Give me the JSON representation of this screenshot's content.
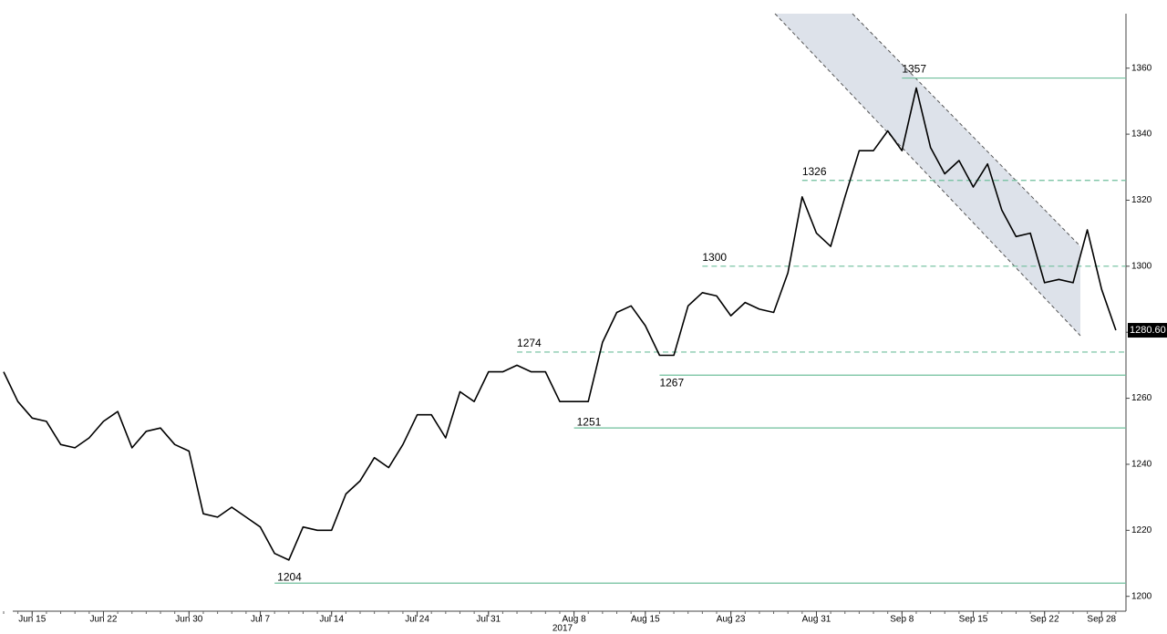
{
  "chart_data": {
    "type": "line",
    "x": [
      "2017-06-13",
      "2017-06-14",
      "2017-06-15",
      "2017-06-16",
      "2017-06-19",
      "2017-06-20",
      "2017-06-21",
      "2017-06-22",
      "2017-06-23",
      "2017-06-26",
      "2017-06-27",
      "2017-06-28",
      "2017-06-29",
      "2017-06-30",
      "2017-07-03",
      "2017-07-04",
      "2017-07-05",
      "2017-07-06",
      "2017-07-07",
      "2017-07-10",
      "2017-07-11",
      "2017-07-12",
      "2017-07-13",
      "2017-07-14",
      "2017-07-17",
      "2017-07-18",
      "2017-07-19",
      "2017-07-20",
      "2017-07-21",
      "2017-07-24",
      "2017-07-25",
      "2017-07-26",
      "2017-07-27",
      "2017-07-28",
      "2017-07-31",
      "2017-08-01",
      "2017-08-02",
      "2017-08-03",
      "2017-08-04",
      "2017-08-07",
      "2017-08-08",
      "2017-08-09",
      "2017-08-10",
      "2017-08-11",
      "2017-08-14",
      "2017-08-15",
      "2017-08-16",
      "2017-08-17",
      "2017-08-18",
      "2017-08-21",
      "2017-08-22",
      "2017-08-23",
      "2017-08-24",
      "2017-08-25",
      "2017-08-28",
      "2017-08-29",
      "2017-08-30",
      "2017-08-31",
      "2017-09-01",
      "2017-09-04",
      "2017-09-05",
      "2017-09-06",
      "2017-09-07",
      "2017-09-08",
      "2017-09-11",
      "2017-09-12",
      "2017-09-13",
      "2017-09-14",
      "2017-09-15",
      "2017-09-18",
      "2017-09-19",
      "2017-09-20",
      "2017-09-21",
      "2017-09-22",
      "2017-09-25",
      "2017-09-26",
      "2017-09-27",
      "2017-09-28",
      "2017-09-29"
    ],
    "series": [
      {
        "color": "#000000",
        "values": [
          1268,
          1259,
          1254,
          1253,
          1246,
          1245,
          1248,
          1253,
          1256,
          1245,
          1250,
          1251,
          1246,
          1244,
          1225,
          1224,
          1227,
          1224,
          1221,
          1213,
          1211,
          1221,
          1220,
          1220,
          1231,
          1235,
          1242,
          1239,
          1246,
          1255,
          1255,
          1248,
          1262,
          1259,
          1268,
          1268,
          1270,
          1268,
          1268,
          1259,
          1259,
          1259,
          1277,
          1286,
          1288,
          1282,
          1273,
          1273,
          1288,
          1292,
          1291,
          1285,
          1289,
          1287,
          1286,
          1298,
          1321,
          1310,
          1306,
          1321,
          1335,
          1335,
          1341,
          1335,
          1354,
          1336,
          1328,
          1332,
          1324,
          1331,
          1317,
          1309,
          1310,
          1295,
          1296,
          1295,
          1311,
          1293,
          1280.6
        ],
        "value_labels": [
          null,
          null,
          null,
          null,
          null,
          null,
          null,
          null,
          null,
          null,
          null,
          null,
          null,
          null,
          null,
          null,
          null,
          null,
          null,
          null,
          null,
          null,
          null,
          null,
          null,
          null,
          null,
          null,
          null,
          null,
          null,
          null,
          null,
          null,
          null,
          null,
          null,
          null,
          null,
          null,
          null,
          null,
          null,
          null,
          null,
          null,
          null,
          null,
          null,
          null,
          null,
          null,
          null,
          null,
          null,
          null,
          null,
          null,
          null,
          null,
          null,
          null,
          null,
          null,
          null,
          null,
          null,
          null,
          null,
          null,
          null,
          null,
          null,
          null,
          null,
          null,
          null,
          null,
          "1280.60"
        ]
      }
    ],
    "xticks": [
      {
        "value": "2017-06-15",
        "label": "Jun 15"
      },
      {
        "value": "2017-06-22",
        "label": "Jun 22"
      },
      {
        "value": "2017-06-30",
        "label": "Jun 30"
      },
      {
        "value": "2017-07-07",
        "label": "Jul 7"
      },
      {
        "value": "2017-07-14",
        "label": "Jul 14"
      },
      {
        "value": "2017-07-24",
        "label": "Jul 24"
      },
      {
        "value": "2017-07-31",
        "label": "Jul 31"
      },
      {
        "value": "2017-08-08",
        "label": "Aug 8"
      },
      {
        "value": "2017-08-15",
        "label": "Aug 15"
      },
      {
        "value": "2017-08-23",
        "label": "Aug 23"
      },
      {
        "value": "2017-08-31",
        "label": "Aug 31"
      },
      {
        "value": "2017-09-08",
        "label": "Sep 8"
      },
      {
        "value": "2017-09-15",
        "label": "Sep 15"
      },
      {
        "value": "2017-09-22",
        "label": "Sep 22"
      },
      {
        "value": "2017-09-28",
        "label": "Sep 28"
      }
    ],
    "year_label": "2017",
    "ylim": [
      1195.5,
      1376.5
    ],
    "yticks": [
      1200,
      1220,
      1240,
      1260,
      1280,
      1300,
      1320,
      1340,
      1360
    ],
    "levels": [
      {
        "value": 1357,
        "start": "2017-09-08",
        "style": "solid"
      },
      {
        "value": 1326,
        "start": "2017-08-30",
        "style": "dashed"
      },
      {
        "value": 1300,
        "start": "2017-08-21",
        "style": "dashed"
      },
      {
        "value": 1274,
        "start": "2017-08-02",
        "style": "dashed"
      },
      {
        "value": 1267,
        "start": "2017-08-16",
        "style": "solid"
      },
      {
        "value": 1251,
        "start": "2017-08-08",
        "style": "solid"
      },
      {
        "value": 1204,
        "start": "2017-07-10",
        "style": "solid"
      }
    ],
    "level_color": "#6fbf9c"
  }
}
